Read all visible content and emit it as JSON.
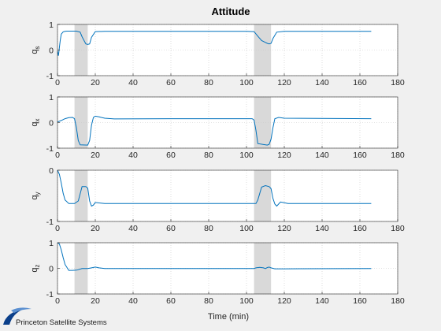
{
  "chart_data": {
    "type": "line",
    "title": "Attitude",
    "xlabel": "Time (min)",
    "xlim": [
      0,
      180
    ],
    "xticks": [
      0,
      20,
      40,
      60,
      80,
      100,
      120,
      140,
      160,
      180
    ],
    "grid": true,
    "line_color": "#0072bd",
    "shade_color": "#d9d9d9",
    "shaded_regions": [
      [
        9,
        16
      ],
      [
        104,
        113
      ]
    ],
    "panels": [
      {
        "ylabel": "q",
        "ylabel_sub": "s",
        "ylim": [
          -1,
          1
        ],
        "yticks": [
          -1,
          0,
          1
        ],
        "x": [
          0,
          0.5,
          1,
          1.5,
          2,
          3,
          4,
          5,
          8,
          10,
          12,
          13,
          15,
          16,
          17,
          18,
          20,
          25,
          60,
          100,
          104,
          106,
          108,
          110,
          111,
          112,
          113,
          114,
          116,
          120,
          166
        ],
        "y": [
          -0.05,
          -0.22,
          0.1,
          0.4,
          0.62,
          0.71,
          0.73,
          0.74,
          0.74,
          0.74,
          0.7,
          0.52,
          0.24,
          0.22,
          0.24,
          0.5,
          0.72,
          0.73,
          0.73,
          0.73,
          0.72,
          0.54,
          0.37,
          0.3,
          0.26,
          0.24,
          0.26,
          0.45,
          0.7,
          0.73,
          0.73
        ]
      },
      {
        "ylabel": "q",
        "ylabel_sub": "x",
        "ylim": [
          -1,
          1
        ],
        "yticks": [
          -1,
          0,
          1
        ],
        "x": [
          0,
          2,
          4,
          6,
          8,
          9,
          10,
          11,
          12,
          16,
          17,
          18,
          19,
          20,
          22,
          25,
          30,
          60,
          100,
          103,
          104,
          105,
          106,
          111,
          112,
          113,
          114,
          115,
          117,
          120,
          166
        ],
        "y": [
          0.02,
          0.08,
          0.15,
          0.19,
          0.2,
          0.15,
          -0.2,
          -0.7,
          -0.87,
          -0.88,
          -0.7,
          -0.1,
          0.2,
          0.25,
          0.22,
          0.17,
          0.14,
          0.15,
          0.15,
          0.15,
          0.1,
          -0.3,
          -0.82,
          -0.88,
          -0.85,
          -0.65,
          -0.2,
          0.15,
          0.2,
          0.17,
          0.15
        ]
      },
      {
        "ylabel": "q",
        "ylabel_sub": "y",
        "ylim": [
          -1,
          0
        ],
        "yticks": [
          -1,
          0
        ],
        "x": [
          0,
          1,
          2,
          3,
          4,
          6,
          9,
          11,
          13,
          15,
          16,
          17,
          18,
          19,
          20,
          25,
          60,
          105,
          106,
          108,
          110,
          112,
          113,
          114,
          115,
          116,
          118,
          122,
          166
        ],
        "y": [
          0,
          -0.08,
          -0.25,
          -0.45,
          -0.58,
          -0.65,
          -0.65,
          -0.6,
          -0.32,
          -0.32,
          -0.35,
          -0.6,
          -0.7,
          -0.68,
          -0.63,
          -0.65,
          -0.65,
          -0.65,
          -0.58,
          -0.33,
          -0.3,
          -0.32,
          -0.36,
          -0.55,
          -0.66,
          -0.7,
          -0.62,
          -0.65,
          -0.65
        ]
      },
      {
        "ylabel": "q",
        "ylabel_sub": "z",
        "ylim": [
          -1,
          1
        ],
        "yticks": [
          -1,
          0,
          1
        ],
        "x": [
          0,
          1,
          2,
          3,
          4,
          6,
          8,
          10,
          13,
          16,
          18,
          20,
          22,
          25,
          60,
          100,
          104,
          105,
          107,
          109,
          110,
          111,
          112,
          113,
          115,
          120,
          166
        ],
        "y": [
          1.0,
          0.95,
          0.72,
          0.42,
          0.15,
          -0.08,
          -0.08,
          -0.07,
          -0.01,
          -0.01,
          0.02,
          0.05,
          0.02,
          -0.01,
          -0.01,
          -0.01,
          -0.01,
          0.02,
          0.04,
          0.02,
          -0.01,
          0.03,
          0.05,
          0.02,
          -0.02,
          -0.02,
          -0.01
        ]
      }
    ]
  },
  "logo": {
    "text": "Princeton Satellite Systems"
  }
}
